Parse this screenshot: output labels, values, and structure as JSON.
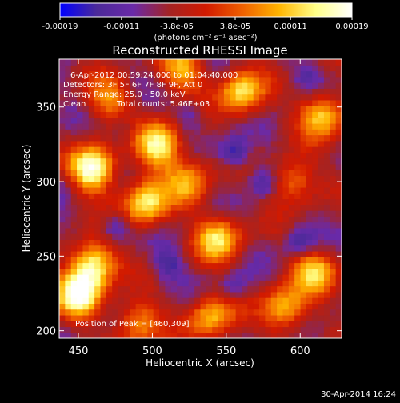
{
  "chart_data": {
    "type": "heatmap",
    "title": "Reconstructed RHESSI Image",
    "xlabel": "Heliocentric X (arcsec)",
    "ylabel": "Heliocentric Y (arcsec)",
    "xlim": [
      437,
      628
    ],
    "ylim": [
      195,
      382
    ],
    "x_ticks": [
      450,
      500,
      550,
      600
    ],
    "y_ticks": [
      200,
      250,
      300,
      350
    ],
    "colorbar": {
      "min": -0.00019,
      "max": 0.00019,
      "tick_values": [
        -0.00019,
        -0.00011,
        -3.8e-05,
        3.8e-05,
        0.00011,
        0.00019
      ],
      "tick_labels": [
        "-0.00019",
        "-0.00011",
        "-3.8e-05",
        "3.8e-05",
        "0.00011",
        "0.00019"
      ],
      "units": "(photons cm⁻² s⁻¹ asec⁻²)",
      "colors": [
        "#0000ff",
        "#4b2a99",
        "#6a2aa8",
        "#a42323",
        "#d21a00",
        "#f06000",
        "#ffb400",
        "#ffff88",
        "#ffffff"
      ]
    },
    "annotations": [
      "6-Apr-2012 00:59:24.000 to 01:04:40.000",
      "Detectors: 3F 5F 6F 7F 8F 9F, Att 0",
      "Energy Range: 25.0 - 50.0 keV",
      "Clean",
      "Total counts: 5.46E+03",
      "Position of Peak = [460,309]"
    ],
    "peak_position": [
      460,
      309
    ],
    "grid_size": [
      48,
      48
    ],
    "bright_sources": [
      {
        "x": 460,
        "y": 309,
        "value": 0.00019
      },
      {
        "x": 505,
        "y": 325,
        "value": 0.00016
      },
      {
        "x": 495,
        "y": 285,
        "value": 0.00014
      },
      {
        "x": 560,
        "y": 360,
        "value": 0.00013
      },
      {
        "x": 545,
        "y": 262,
        "value": 0.00012
      },
      {
        "x": 460,
        "y": 245,
        "value": 0.00016
      },
      {
        "x": 450,
        "y": 225,
        "value": 0.00017
      },
      {
        "x": 615,
        "y": 345,
        "value": 0.00012
      },
      {
        "x": 610,
        "y": 240,
        "value": 0.0001
      },
      {
        "x": 590,
        "y": 215,
        "value": 0.00011
      },
      {
        "x": 540,
        "y": 210,
        "value": 0.0001
      },
      {
        "x": 490,
        "y": 205,
        "value": 9e-05
      },
      {
        "x": 520,
        "y": 375,
        "value": 9e-05
      },
      {
        "x": 595,
        "y": 300,
        "value": 8e-05
      },
      {
        "x": 525,
        "y": 300,
        "value": 8e-05
      },
      {
        "x": 470,
        "y": 355,
        "value": 7e-05
      }
    ],
    "dim_regions": [
      {
        "x": 555,
        "y": 320,
        "value": -0.00015
      },
      {
        "x": 510,
        "y": 245,
        "value": -0.00012
      },
      {
        "x": 575,
        "y": 300,
        "value": -0.00012
      },
      {
        "x": 600,
        "y": 260,
        "value": -0.00013
      },
      {
        "x": 555,
        "y": 230,
        "value": -0.0001
      },
      {
        "x": 525,
        "y": 345,
        "value": -0.0001
      },
      {
        "x": 475,
        "y": 270,
        "value": -0.00012
      },
      {
        "x": 605,
        "y": 370,
        "value": -9e-05
      },
      {
        "x": 480,
        "y": 335,
        "value": -8e-05
      },
      {
        "x": 440,
        "y": 300,
        "value": -6e-05
      }
    ]
  },
  "footer": {
    "timestamp": "30-Apr-2014 16:24"
  }
}
